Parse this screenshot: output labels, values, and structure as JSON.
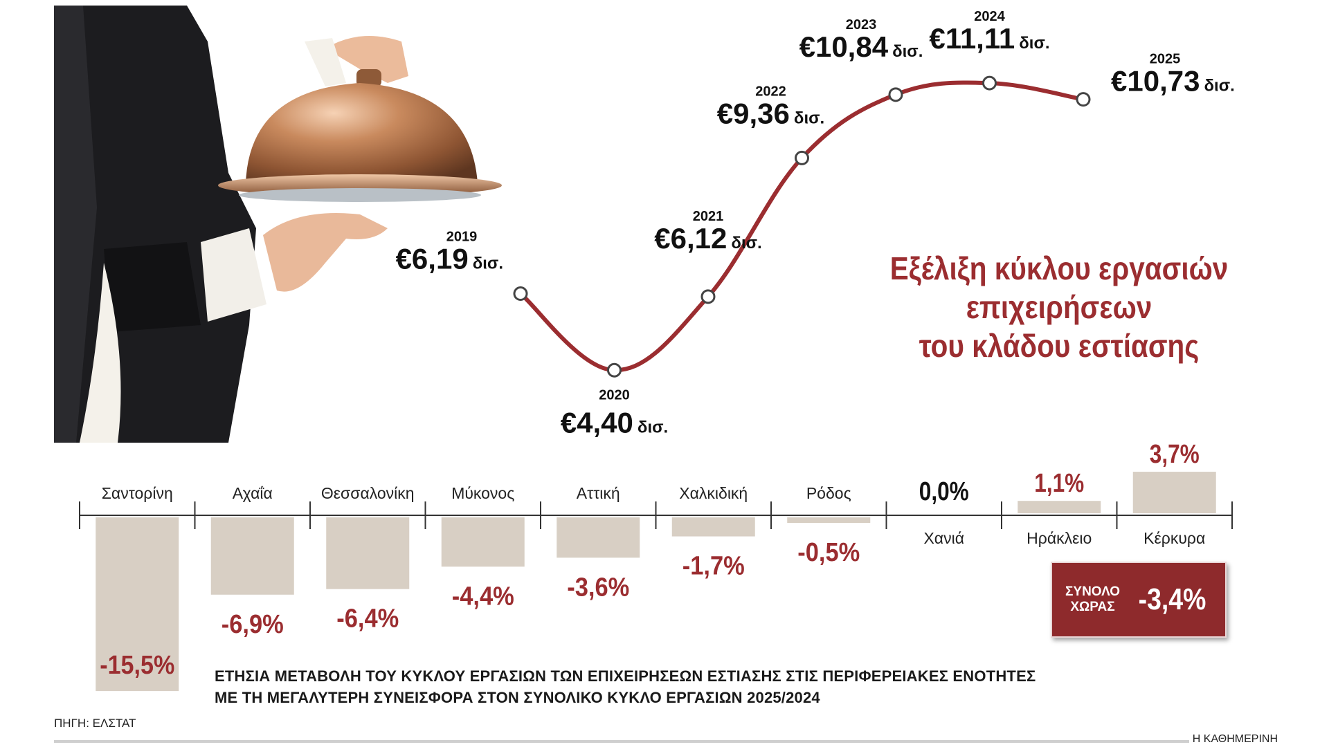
{
  "title_lines": [
    "Εξέλιξη κύκλου εργασιών",
    "επιχειρήσεων",
    "του κλάδου εστίασης"
  ],
  "chart_data": [
    {
      "type": "line",
      "x": [
        "2019",
        "2020",
        "2021",
        "2022",
        "2023",
        "2024",
        "2025"
      ],
      "series": [
        {
          "values": [
            6.19,
            4.4,
            6.12,
            9.36,
            10.84,
            11.11,
            10.73
          ]
        }
      ],
      "value_labels": [
        "€6,19",
        "€4,40",
        "€6,12",
        "€9,36",
        "€10,84",
        "€11,11",
        "€10,73"
      ],
      "unit_label": "δισ.",
      "line_color": "#9b2d30"
    },
    {
      "type": "bar",
      "categories": [
        "Σαντορίνη",
        "Αχαΐα",
        "Θεσσαλονίκη",
        "Μύκονος",
        "Αττική",
        "Χαλκιδική",
        "Ρόδος",
        "Χανιά",
        "Ηράκλειο",
        "Κέρκυρα"
      ],
      "values": [
        -15.5,
        -6.9,
        -6.4,
        -4.4,
        -3.6,
        -1.7,
        -0.5,
        0.0,
        1.1,
        3.7
      ],
      "value_labels": [
        "-15,5%",
        "-6,9%",
        "-6,4%",
        "-4,4%",
        "-3,6%",
        "-1,7%",
        "-0,5%",
        "0,0%",
        "1,1%",
        "3,7%"
      ],
      "bar_color": "#d8cfc4",
      "label_color": "#9b2d30"
    }
  ],
  "caption_lines": [
    "ΕΤΗΣΙΑ ΜΕΤΑΒΟΛΗ ΤΟΥ ΚΥΚΛΟΥ ΕΡΓΑΣΙΩΝ ΤΩΝ ΕΠΙΧΕΙΡΗΣΕΩΝ ΕΣΤΙΑΣΗΣ ΣΤΙΣ ΠΕΡΙΦΕΡΕΙΑΚΕΣ ΕΝΟΤΗΤΕΣ",
    "ΜΕ ΤΗ ΜΕΓΑΛΥΤΕΡΗ ΣΥΝΕΙΣΦΟΡΑ ΣΤΟΝ ΣΥΝΟΛΙΚΟ ΚΥΚΛΟ ΕΡΓΑΣΙΩΝ 2025/2024"
  ],
  "total": {
    "label_line1": "ΣΥΝΟΛΟ",
    "label_line2": "ΧΩΡΑΣ",
    "value": "-3,4%"
  },
  "source": "ΠΗΓΗ: ΕΛΣΤΑΤ",
  "brand": "Η ΚΑΘΗΜΕΡΙΝΗ",
  "illustration": "waiter-with-cloche-image"
}
